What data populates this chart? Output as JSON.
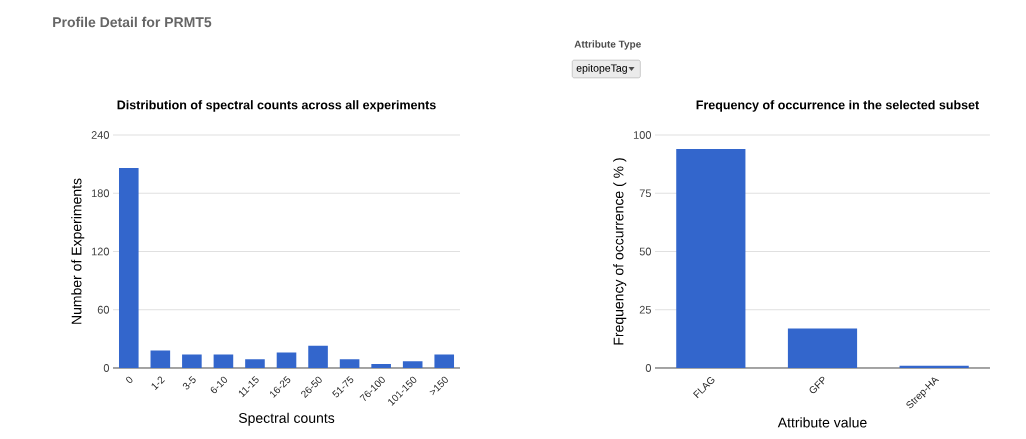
{
  "chart_data": [
    {
      "type": "bar",
      "title": "Distribution of spectral counts across all experiments",
      "xlabel": "Spectral counts",
      "ylabel": "Number of Experiments",
      "annotations": [
        "Profile Detail for PRMT5"
      ],
      "categories": [
        "0",
        "1-2",
        "3-5",
        "6-10",
        "11-15",
        "16-25",
        "26-50",
        "51-75",
        "76-100",
        "101-150",
        ">150"
      ],
      "values": [
        206,
        18,
        14,
        14,
        9,
        16,
        23,
        9,
        4,
        7,
        14
      ],
      "color": "#3366cc",
      "ylim": [
        0,
        240
      ],
      "yticks": [
        0,
        60,
        120,
        180,
        240
      ],
      "grid": "y"
    },
    {
      "type": "bar",
      "title": "Frequency of occurrence in the selected subset",
      "xlabel": "Attribute value",
      "ylabel": "Frequency of occurrence ( % )",
      "annotations": [
        "Attribute Type",
        "epitopeTag"
      ],
      "categories": [
        "FLAG",
        "GFP",
        "Strep-HA"
      ],
      "values": [
        94,
        17,
        1
      ],
      "color": "#3366cc",
      "ylim": [
        0,
        100
      ],
      "yticks": [
        0,
        25,
        50,
        75,
        100
      ],
      "grid": "y"
    }
  ]
}
